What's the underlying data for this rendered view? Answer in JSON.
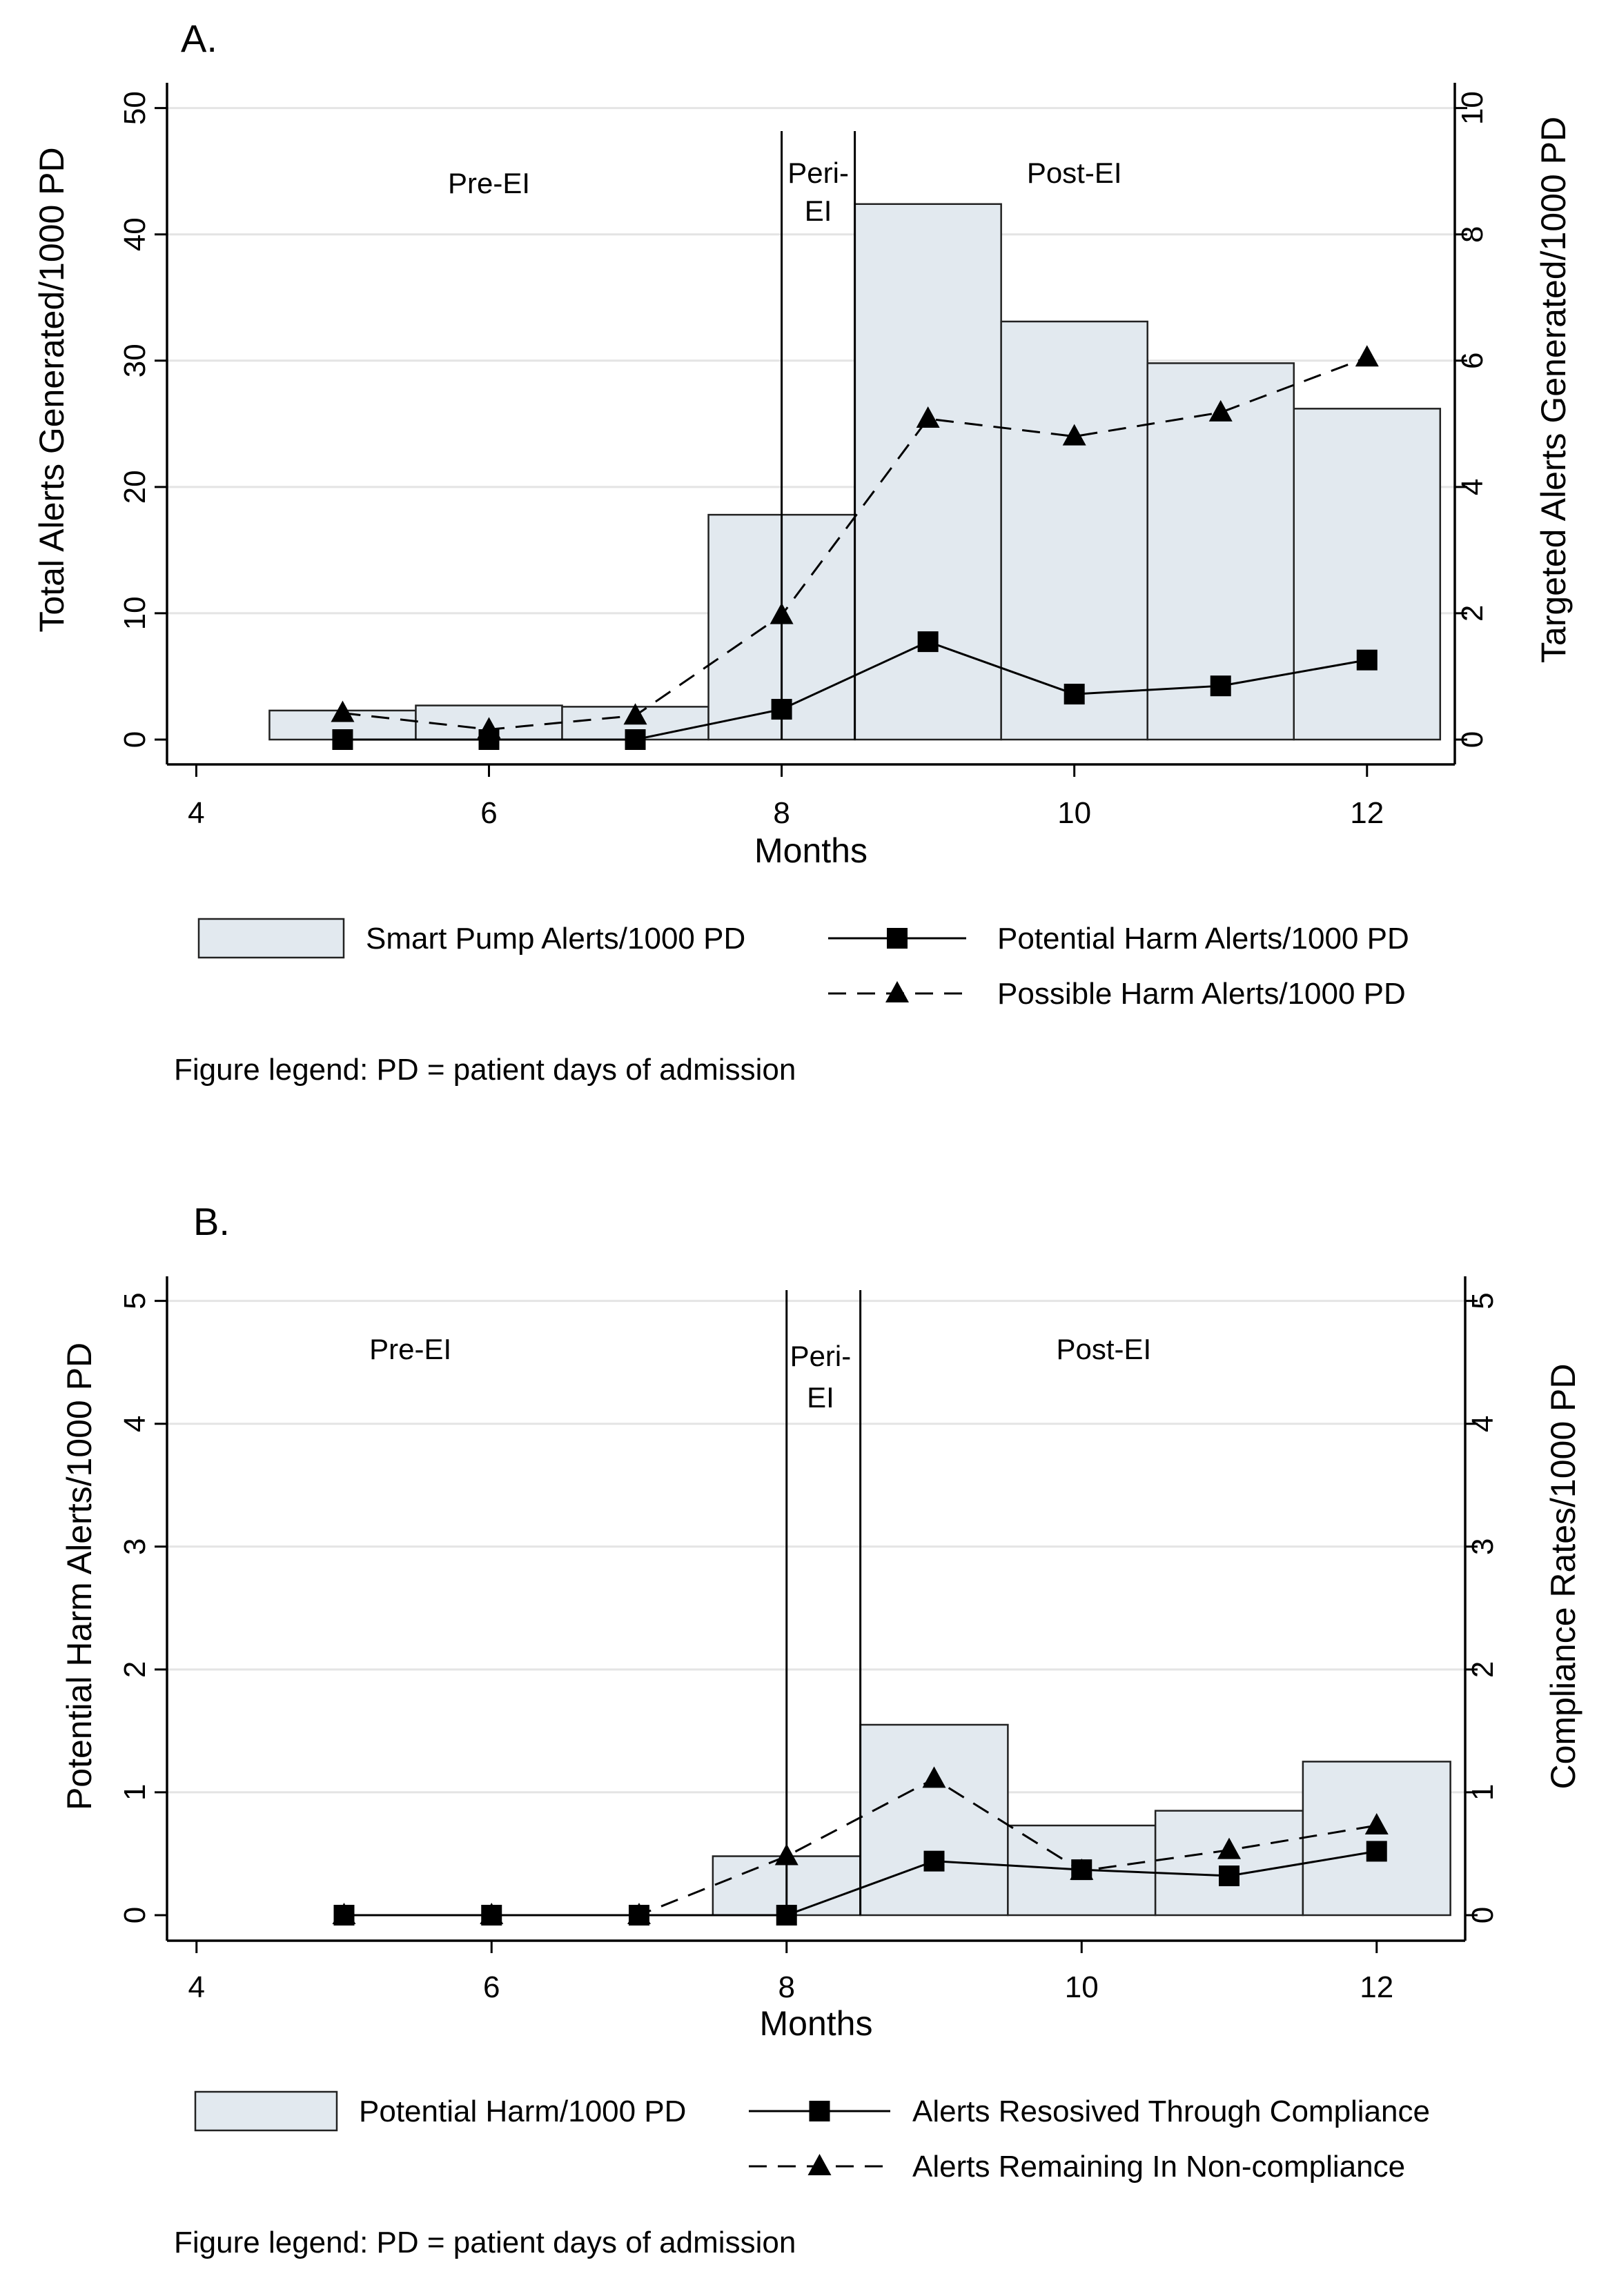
{
  "chart_data": [
    {
      "type": "bar",
      "panel_label": "A.",
      "xlabel": "Months",
      "ylabel_left": "Total Alerts Generated/1000 PD",
      "ylabel_right": "Targeted Alerts Generated/1000 PD",
      "xlim": [
        3.8,
        12.6
      ],
      "xticks": [
        4,
        6,
        8,
        10,
        12
      ],
      "ylim_left": [
        0,
        52
      ],
      "yticks_left": [
        0,
        10,
        20,
        30,
        40,
        50
      ],
      "ylim_right": [
        0,
        10.4
      ],
      "yticks_right": [
        0,
        2,
        4,
        6,
        8,
        10
      ],
      "grid": "horizontal",
      "phases": [
        {
          "label": "Pre-EI",
          "x": 6.0
        },
        {
          "label": "Peri-",
          "label2": "EI",
          "x": 8.25
        },
        {
          "label": "Post-EI",
          "x": 10.0
        }
      ],
      "dividers": [
        8,
        8.5
      ],
      "bars": {
        "name": "Smart Pump Alerts/1000 PD",
        "axis": "left",
        "x": [
          5,
          6,
          7,
          8,
          9,
          10,
          11,
          12
        ],
        "values": [
          2.3,
          2.7,
          2.6,
          17.8,
          42.4,
          33.1,
          29.8,
          26.2
        ]
      },
      "series": [
        {
          "name": "Potential Harm Alerts/1000 PD",
          "axis": "right",
          "marker": "square",
          "style": "solid",
          "x": [
            5,
            6,
            7,
            8,
            9,
            10,
            11,
            12
          ],
          "values": [
            0,
            0,
            0,
            0.48,
            1.55,
            0.72,
            0.85,
            1.26
          ]
        },
        {
          "name": "Possible Harm Alerts/1000 PD",
          "axis": "right",
          "marker": "triangle",
          "style": "dashed",
          "x": [
            5,
            6,
            7,
            8,
            9,
            10,
            11,
            12
          ],
          "values": [
            0.42,
            0.16,
            0.38,
            1.97,
            5.08,
            4.8,
            5.18,
            6.05
          ]
        }
      ],
      "footnote": "Figure legend: PD = patient days of admission"
    },
    {
      "type": "bar",
      "panel_label": "B.",
      "xlabel": "Months",
      "ylabel_left": "Potential Harm Alerts/1000 PD",
      "ylabel_right": "Compliance Rates/1000 PD",
      "xlim": [
        3.8,
        12.6
      ],
      "xticks": [
        4,
        6,
        8,
        10,
        12
      ],
      "ylim_left": [
        0,
        5.2
      ],
      "yticks_left": [
        0,
        1,
        2,
        3,
        4,
        5
      ],
      "ylim_right": [
        0,
        5.2
      ],
      "yticks_right": [
        0,
        1,
        2,
        3,
        4,
        5
      ],
      "grid": "horizontal",
      "phases": [
        {
          "label": "Pre-EI",
          "x": 5.45
        },
        {
          "label": "Peri-",
          "label2": "EI",
          "x": 8.23
        },
        {
          "label": "Post-EI",
          "x": 10.15
        }
      ],
      "dividers": [
        8,
        8.5
      ],
      "bars": {
        "name": "Potential Harm/1000 PD",
        "axis": "left",
        "x": [
          8,
          9,
          10,
          11,
          12
        ],
        "values": [
          0.48,
          1.55,
          0.73,
          0.85,
          1.25
        ]
      },
      "series": [
        {
          "name": "Alerts Resosived Through Compliance",
          "axis": "right",
          "marker": "square",
          "style": "solid",
          "x": [
            5,
            6,
            7,
            8,
            9,
            10,
            11,
            12
          ],
          "values": [
            0,
            0,
            0,
            0,
            0.44,
            0.37,
            0.32,
            0.52
          ]
        },
        {
          "name": "Alerts Remaining In Non-compliance",
          "axis": "right",
          "marker": "triangle",
          "style": "dashed",
          "x": [
            5,
            6,
            7,
            8,
            9,
            10,
            11,
            12
          ],
          "values": [
            0,
            0,
            0,
            0.48,
            1.11,
            0.36,
            0.53,
            0.73
          ]
        }
      ],
      "footnote": "Figure legend: PD = patient days of admission"
    }
  ],
  "colors": {
    "bar_fill": "#e2e9ef",
    "bar_stroke": "#222222",
    "axis": "#000000",
    "grid": "#e4e4e4",
    "line": "#000000"
  }
}
